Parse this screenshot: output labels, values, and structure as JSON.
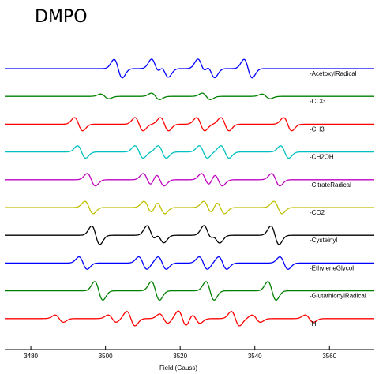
{
  "page_title": "DMPO",
  "chart_data": {
    "type": "line",
    "title": "DMPO",
    "xlabel": "Field (Gauss)",
    "ylabel": "",
    "xlim": [
      3473,
      3572
    ],
    "xticks": [
      3480,
      3500,
      3520,
      3540,
      3560
    ],
    "grid": false,
    "legend": "right of each trace",
    "series": [
      {
        "name": "-AcetoxylRadical",
        "color": "#0000ff",
        "amp": 1.0,
        "lines": [
          {
            "pos": 3503.4,
            "i": 0.9
          },
          {
            "pos": 3513.4,
            "i": 0.9
          },
          {
            "pos": 3515.8,
            "i": 0.8
          },
          {
            "pos": 3525.8,
            "i": 0.9
          },
          {
            "pos": 3528.2,
            "i": 0.85
          },
          {
            "pos": 3538.2,
            "i": 0.9
          }
        ]
      },
      {
        "name": "-CCl3",
        "color": "#008000",
        "amp": 0.45,
        "lines": [
          {
            "pos": 3499.8,
            "i": 0.5
          },
          {
            "pos": 3513.4,
            "i": 0.7
          },
          {
            "pos": 3527.0,
            "i": 0.7
          },
          {
            "pos": 3543.0,
            "i": 0.5
          }
        ]
      },
      {
        "name": "-CH3",
        "color": "#ff0000",
        "amp": 0.8,
        "lines": [
          {
            "pos": 3492.8,
            "i": 0.8
          },
          {
            "pos": 3509.0,
            "i": 0.8
          },
          {
            "pos": 3515.8,
            "i": 0.8
          },
          {
            "pos": 3525.5,
            "i": 0.8
          },
          {
            "pos": 3532.0,
            "i": 0.8
          },
          {
            "pos": 3548.8,
            "i": 0.8
          }
        ]
      },
      {
        "name": "-CH2OH",
        "color": "#00c0c0",
        "amp": 0.75,
        "lines": [
          {
            "pos": 3493.6,
            "i": 0.8
          },
          {
            "pos": 3509.0,
            "i": 0.8
          },
          {
            "pos": 3515.2,
            "i": 0.8
          },
          {
            "pos": 3526.2,
            "i": 0.8
          },
          {
            "pos": 3532.0,
            "i": 0.8
          },
          {
            "pos": 3548.0,
            "i": 0.8
          }
        ]
      },
      {
        "name": "-CitrateRadical",
        "color": "#c000c0",
        "amp": 0.75,
        "lines": [
          {
            "pos": 3496.2,
            "i": 0.8
          },
          {
            "pos": 3511.2,
            "i": 0.8
          },
          {
            "pos": 3514.6,
            "i": 0.8
          },
          {
            "pos": 3526.8,
            "i": 0.8
          },
          {
            "pos": 3530.2,
            "i": 0.8
          },
          {
            "pos": 3545.6,
            "i": 0.8
          }
        ]
      },
      {
        "name": "-CO2",
        "color": "#c0c000",
        "amp": 0.75,
        "lines": [
          {
            "pos": 3495.6,
            "i": 0.8
          },
          {
            "pos": 3511.4,
            "i": 0.8
          },
          {
            "pos": 3514.8,
            "i": 0.8
          },
          {
            "pos": 3527.4,
            "i": 0.8
          },
          {
            "pos": 3530.8,
            "i": 0.8
          },
          {
            "pos": 3546.2,
            "i": 0.8
          }
        ]
      },
      {
        "name": "-Cysteinyl",
        "color": "#000000",
        "amp": 1.0,
        "lines": [
          {
            "pos": 3497.4,
            "i": 0.9
          },
          {
            "pos": 3512.2,
            "i": 0.9
          },
          {
            "pos": 3514.6,
            "i": 0.7
          },
          {
            "pos": 3527.4,
            "i": 0.9
          },
          {
            "pos": 3529.6,
            "i": 0.7
          },
          {
            "pos": 3545.4,
            "i": 0.9
          }
        ]
      },
      {
        "name": "-EthyleneGlycol",
        "color": "#0000ff",
        "amp": 0.75,
        "lines": [
          {
            "pos": 3494.0,
            "i": 0.8
          },
          {
            "pos": 3510.0,
            "i": 0.8
          },
          {
            "pos": 3515.2,
            "i": 0.8
          },
          {
            "pos": 3526.2,
            "i": 0.8
          },
          {
            "pos": 3531.4,
            "i": 0.8
          },
          {
            "pos": 3547.8,
            "i": 0.8
          }
        ]
      },
      {
        "name": "-GlutathionylRadical",
        "color": "#008000",
        "amp": 1.0,
        "lines": [
          {
            "pos": 3498.2,
            "i": 0.9
          },
          {
            "pos": 3513.4,
            "i": 0.9
          },
          {
            "pos": 3528.0,
            "i": 0.9
          },
          {
            "pos": 3544.6,
            "i": 0.9
          }
        ]
      },
      {
        "name": "-H",
        "color": "#ff0000",
        "amp": 1.0,
        "lines": [
          {
            "pos": 3487.6,
            "i": 0.35
          },
          {
            "pos": 3501.8,
            "i": 0.35
          },
          {
            "pos": 3506.8,
            "i": 0.7
          },
          {
            "pos": 3515.6,
            "i": 0.45
          },
          {
            "pos": 3520.6,
            "i": 0.75
          },
          {
            "pos": 3524.2,
            "i": 0.45
          },
          {
            "pos": 3534.8,
            "i": 0.7
          },
          {
            "pos": 3540.4,
            "i": 0.35
          },
          {
            "pos": 3554.6,
            "i": 0.35
          }
        ]
      }
    ]
  }
}
